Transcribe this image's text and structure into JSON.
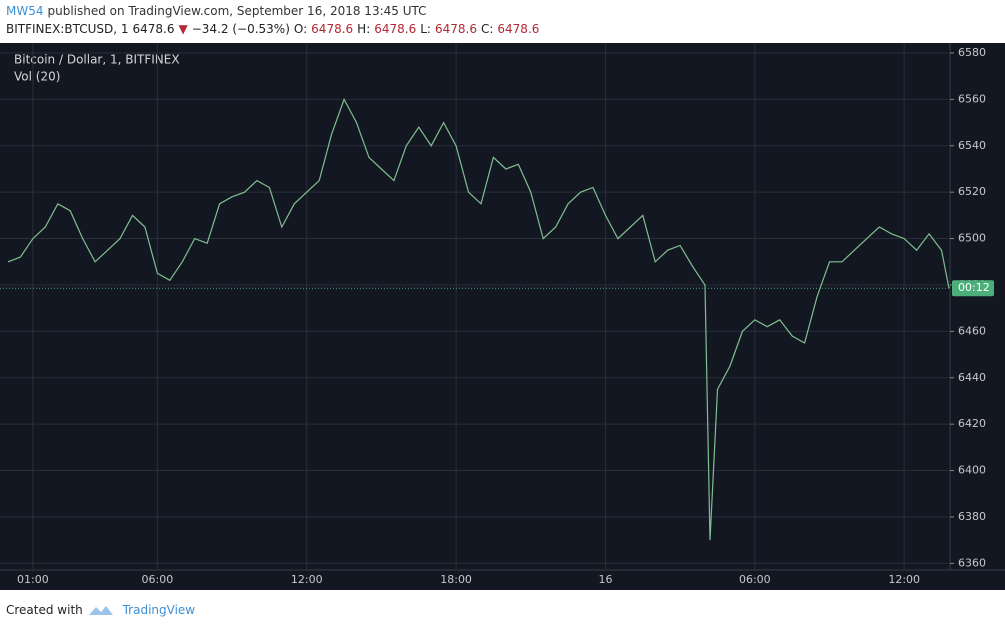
{
  "header": {
    "line1": [
      {
        "text": "MW54",
        "color": "#3d8fd6"
      },
      {
        "text": "published on TradingView.com, September 16, 2018 13:45 UTC",
        "color": "#333333"
      }
    ],
    "line2": [
      {
        "text": "BITFINEX:BTCUSD, 1",
        "color": "#222222"
      },
      {
        "text": "6478.6",
        "color": "#222222"
      },
      {
        "text": "▼",
        "color": "#b22833"
      },
      {
        "text": "−34.2 (−0.53%)",
        "color": "#222222"
      },
      {
        "text": "O:",
        "color": "#222222"
      },
      {
        "text": "6478.6",
        "color": "#b22833"
      },
      {
        "text": "H:",
        "color": "#222222"
      },
      {
        "text": "6478.6",
        "color": "#b22833"
      },
      {
        "text": "L:",
        "color": "#222222"
      },
      {
        "text": "6478.6",
        "color": "#b22833"
      },
      {
        "text": "C:",
        "color": "#222222"
      },
      {
        "text": "6478.6",
        "color": "#b22833"
      }
    ]
  },
  "chart_data": {
    "type": "line",
    "legend": [
      "Bitcoin / Dollar, 1, BITFINEX",
      "Vol (20)"
    ],
    "x": [
      0,
      0.5,
      1,
      1.5,
      2,
      2.5,
      3,
      3.5,
      4,
      4.5,
      5,
      5.5,
      6,
      6.5,
      7,
      7.5,
      8,
      8.5,
      9,
      9.5,
      10,
      10.5,
      11,
      11.5,
      12,
      12.5,
      13,
      13.5,
      14,
      14.5,
      15,
      15.5,
      16,
      16.5,
      17,
      17.5,
      18,
      18.5,
      19,
      19.5,
      20,
      20.5,
      21,
      21.5,
      22,
      22.5,
      23,
      23.5,
      24,
      24.5,
      25,
      25.5,
      26,
      26.5,
      27,
      27.5,
      28,
      28.2,
      28.5,
      29,
      29.5,
      30,
      30.5,
      31,
      31.5,
      32,
      32.5,
      33,
      33.5,
      34,
      34.5,
      35,
      35.5,
      36,
      36.5,
      37,
      37.5,
      37.8
    ],
    "series": [
      {
        "name": "Bitcoin / Dollar, 1, BITFINEX",
        "color": "#7fbf8f",
        "values": [
          6490,
          6492,
          6500,
          6505,
          6515,
          6512,
          6500,
          6490,
          6495,
          6500,
          6510,
          6505,
          6485,
          6482,
          6490,
          6500,
          6498,
          6515,
          6518,
          6520,
          6525,
          6522,
          6505,
          6515,
          6520,
          6525,
          6545,
          6560,
          6550,
          6535,
          6530,
          6525,
          6540,
          6548,
          6540,
          6550,
          6540,
          6520,
          6515,
          6535,
          6530,
          6532,
          6520,
          6500,
          6505,
          6515,
          6520,
          6522,
          6510,
          6500,
          6505,
          6510,
          6490,
          6495,
          6497,
          6488,
          6480,
          6370,
          6435,
          6445,
          6460,
          6465,
          6462,
          6465,
          6458,
          6455,
          6475,
          6490,
          6490,
          6495,
          6500,
          6505,
          6502,
          6500,
          6495,
          6502,
          6495,
          6478.6
        ]
      }
    ],
    "last_price_line": true,
    "last_badge": "00:12",
    "last_badge_color": "#4caf7a",
    "xlim": [
      0,
      37.8
    ],
    "xticks": [
      {
        "value": 1,
        "label": "01:00"
      },
      {
        "value": 6,
        "label": "06:00"
      },
      {
        "value": 12,
        "label": "12:00"
      },
      {
        "value": 18,
        "label": "18:00"
      },
      {
        "value": 24,
        "label": "16"
      },
      {
        "value": 30,
        "label": "06:00"
      },
      {
        "value": 36,
        "label": "12:00"
      }
    ],
    "ylim": [
      6358,
      6583
    ],
    "yticks": [
      6360,
      6380,
      6400,
      6420,
      6440,
      6460,
      6480,
      6500,
      6520,
      6540,
      6560,
      6580
    ],
    "grid": true
  },
  "footer": {
    "created": "Created with",
    "brand": "TradingView"
  }
}
